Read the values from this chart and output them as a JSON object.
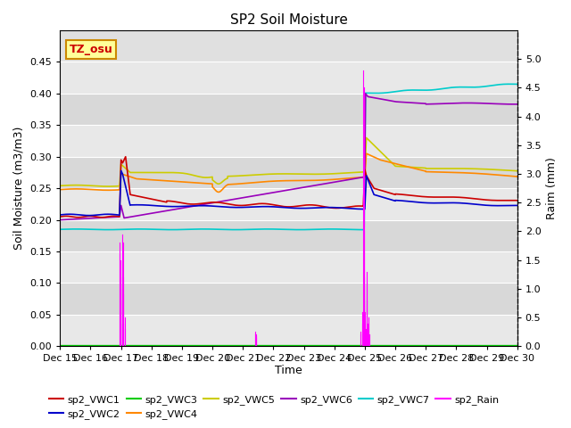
{
  "title": "SP2 Soil Moisture",
  "ylabel_left": "Soil Moisture (m3/m3)",
  "ylabel_right": "Raim (mm)",
  "xlabel": "Time",
  "ylim_left": [
    0,
    0.5
  ],
  "ylim_right": [
    0,
    5.5
  ],
  "xtick_labels": [
    "Dec 15",
    "Dec 16",
    "Dec 17",
    "Dec 18",
    "Dec 19",
    "Dec 20",
    "Dec 21",
    "Dec 22",
    "Dec 23",
    "Dec 24",
    "Dec 25",
    "Dec 26",
    "Dec 27",
    "Dec 28",
    "Dec 29",
    "Dec 30"
  ],
  "yticks_left": [
    0.0,
    0.05,
    0.1,
    0.15,
    0.2,
    0.25,
    0.3,
    0.35,
    0.4,
    0.45
  ],
  "yticks_right": [
    0.0,
    0.5,
    1.0,
    1.5,
    2.0,
    2.5,
    3.0,
    3.5,
    4.0,
    4.5,
    5.0
  ],
  "colors": {
    "sp2_VWC1": "#cc0000",
    "sp2_VWC2": "#0000cc",
    "sp2_VWC3": "#00cc00",
    "sp2_VWC4": "#ff8800",
    "sp2_VWC5": "#cccc00",
    "sp2_VWC6": "#9900bb",
    "sp2_VWC7": "#00cccc",
    "sp2_Rain": "#ff00ff"
  },
  "annotation_box": {
    "text": "TZ_osu",
    "facecolor": "#ffff99",
    "edgecolor": "#cc8800"
  },
  "bg_colors": [
    "#e8e8e8",
    "#d8d8d8"
  ]
}
